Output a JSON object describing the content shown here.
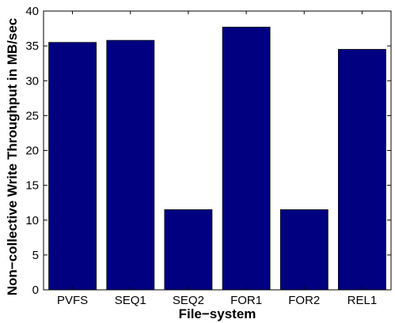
{
  "chart_data": {
    "type": "bar",
    "title": "",
    "xlabel": "File−system",
    "ylabel": "Non−collective Write Throughput in MB/sec",
    "categories": [
      "PVFS",
      "SEQ1",
      "SEQ2",
      "FOR1",
      "FOR2",
      "REL1"
    ],
    "values": [
      35.5,
      35.8,
      11.5,
      37.7,
      11.5,
      34.5
    ],
    "ylim": [
      0,
      40
    ],
    "yticks": [
      0,
      5,
      10,
      15,
      20,
      25,
      30,
      35,
      40
    ],
    "grid": false,
    "legend": "none",
    "colors": {
      "bar": "#000080",
      "bar_edge": "#000000",
      "axis": "#000000"
    }
  }
}
